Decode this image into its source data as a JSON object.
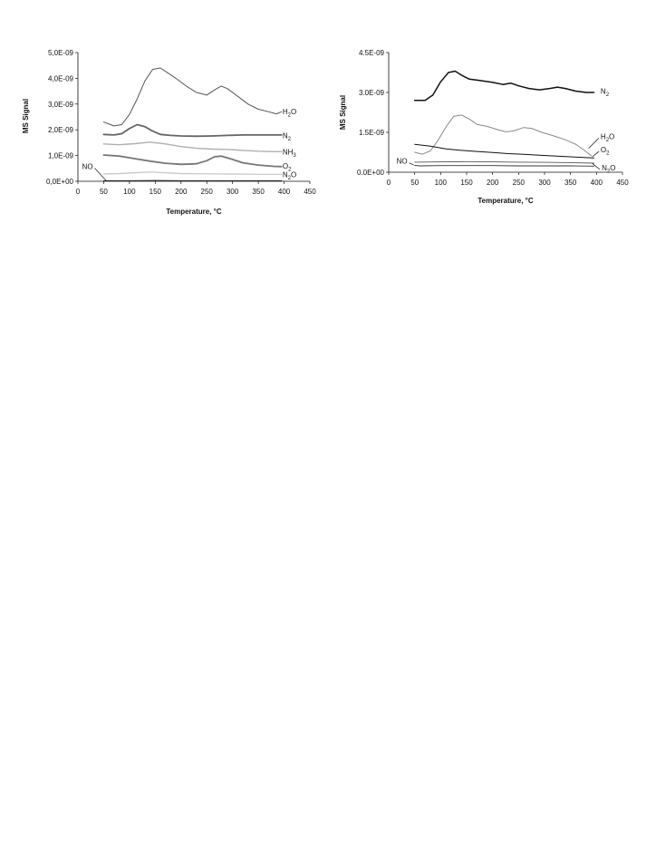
{
  "chart_data": [
    {
      "type": "line",
      "ylabel": "MS Signal",
      "xlabel": "Temperature, °C",
      "xlim": [
        0,
        450
      ],
      "ylim": [
        0,
        5e-09
      ],
      "xticks": [
        0,
        50,
        100,
        150,
        200,
        250,
        300,
        350,
        400,
        450
      ],
      "xtick_labels": [
        "0",
        "50",
        "100",
        "150",
        "200",
        "250",
        "300",
        "350",
        "400",
        "450"
      ],
      "yticks": [
        0,
        1e-09,
        2e-09,
        3e-09,
        4e-09,
        5e-09
      ],
      "ytick_labels": [
        "0,0E+00",
        "1,0E-09",
        "2,0E-09",
        "3,0E-09",
        "4,0E-09",
        "5,0E-09"
      ],
      "grid": false,
      "series": [
        {
          "name": "H2O",
          "label_main": "H",
          "label_sub": "2",
          "label_tail": "O",
          "color": "#555555",
          "width": 1.0,
          "points": [
            [
              50,
              2.3e-09
            ],
            [
              70,
              2.15e-09
            ],
            [
              85,
              2.2e-09
            ],
            [
              100,
              2.6e-09
            ],
            [
              115,
              3.2e-09
            ],
            [
              130,
              3.9e-09
            ],
            [
              145,
              4.35e-09
            ],
            [
              160,
              4.4e-09
            ],
            [
              175,
              4.2e-09
            ],
            [
              190,
              4e-09
            ],
            [
              210,
              3.7e-09
            ],
            [
              230,
              3.45e-09
            ],
            [
              250,
              3.35e-09
            ],
            [
              265,
              3.55e-09
            ],
            [
              278,
              3.7e-09
            ],
            [
              290,
              3.6e-09
            ],
            [
              310,
              3.3e-09
            ],
            [
              330,
              3e-09
            ],
            [
              350,
              2.8e-09
            ],
            [
              370,
              2.7e-09
            ],
            [
              385,
              2.62e-09
            ],
            [
              395,
              2.7e-09
            ]
          ]
        },
        {
          "name": "N2",
          "label_main": "N",
          "label_sub": "2",
          "label_tail": "",
          "color": "#666666",
          "width": 1.8,
          "points": [
            [
              50,
              1.82e-09
            ],
            [
              70,
              1.8e-09
            ],
            [
              85,
              1.85e-09
            ],
            [
              100,
              2.05e-09
            ],
            [
              115,
              2.2e-09
            ],
            [
              130,
              2.12e-09
            ],
            [
              145,
              1.95e-09
            ],
            [
              160,
              1.82e-09
            ],
            [
              180,
              1.78e-09
            ],
            [
              200,
              1.76e-09
            ],
            [
              230,
              1.75e-09
            ],
            [
              260,
              1.76e-09
            ],
            [
              290,
              1.78e-09
            ],
            [
              320,
              1.8e-09
            ],
            [
              350,
              1.8e-09
            ],
            [
              380,
              1.8e-09
            ],
            [
              395,
              1.8e-09
            ]
          ]
        },
        {
          "name": "NH3",
          "label_main": "NH",
          "label_sub": "3",
          "label_tail": "",
          "color": "#b0b0b0",
          "width": 1.4,
          "points": [
            [
              50,
              1.45e-09
            ],
            [
              80,
              1.42e-09
            ],
            [
              110,
              1.46e-09
            ],
            [
              140,
              1.52e-09
            ],
            [
              170,
              1.45e-09
            ],
            [
              200,
              1.35e-09
            ],
            [
              230,
              1.28e-09
            ],
            [
              260,
              1.25e-09
            ],
            [
              290,
              1.24e-09
            ],
            [
              320,
              1.2e-09
            ],
            [
              350,
              1.17e-09
            ],
            [
              380,
              1.15e-09
            ],
            [
              395,
              1.15e-09
            ]
          ]
        },
        {
          "name": "O2",
          "label_main": "O",
          "label_sub": "2",
          "label_tail": "",
          "color": "#777777",
          "width": 1.8,
          "points": [
            [
              50,
              1.02e-09
            ],
            [
              80,
              9.8e-10
            ],
            [
              110,
              8.8e-10
            ],
            [
              140,
              7.8e-10
            ],
            [
              170,
              7e-10
            ],
            [
              200,
              6.6e-10
            ],
            [
              230,
              6.8e-10
            ],
            [
              250,
              8e-10
            ],
            [
              265,
              9.5e-10
            ],
            [
              278,
              9.8e-10
            ],
            [
              295,
              8.8e-10
            ],
            [
              320,
              7.2e-10
            ],
            [
              350,
              6.3e-10
            ],
            [
              380,
              5.8e-10
            ],
            [
              395,
              5.7e-10
            ]
          ]
        },
        {
          "name": "N2O",
          "label_main": "N",
          "label_sub": "2",
          "label_tail": "O",
          "color": "#c4c4c4",
          "width": 1.2,
          "points": [
            [
              50,
              2.8e-10
            ],
            [
              80,
              3e-10
            ],
            [
              110,
              3.3e-10
            ],
            [
              140,
              3.6e-10
            ],
            [
              170,
              3.3e-10
            ],
            [
              200,
              3e-10
            ],
            [
              250,
              2.9e-10
            ],
            [
              300,
              2.8e-10
            ],
            [
              350,
              2.7e-10
            ],
            [
              395,
              2.7e-10
            ]
          ]
        },
        {
          "name": "NO",
          "label_main": "NO",
          "label_sub": "",
          "label_tail": "",
          "color": "#222222",
          "width": 1.0,
          "points": [
            [
              50,
              2e-11
            ],
            [
              100,
              2e-11
            ],
            [
              150,
              3e-11
            ],
            [
              200,
              2e-11
            ],
            [
              250,
              2e-11
            ],
            [
              300,
              2e-11
            ],
            [
              350,
              2e-11
            ],
            [
              395,
              2e-11
            ]
          ]
        }
      ],
      "labels": [
        {
          "series": 0,
          "lx": 397,
          "ly": 2.72e-09,
          "ax": null,
          "ay": null
        },
        {
          "series": 1,
          "lx": 397,
          "ly": 1.78e-09,
          "ax": null,
          "ay": null
        },
        {
          "series": 2,
          "lx": 397,
          "ly": 1.15e-09,
          "ax": null,
          "ay": null
        },
        {
          "series": 3,
          "lx": 397,
          "ly": 6e-10,
          "ax": null,
          "ay": null
        },
        {
          "series": 4,
          "lx": 397,
          "ly": 2.7e-10,
          "ax": null,
          "ay": null
        },
        {
          "series": 5,
          "lx": 8,
          "ly": 5.8e-10,
          "ax": 55,
          "ay": 2e-11
        }
      ]
    },
    {
      "type": "line",
      "ylabel": "MS Signal",
      "xlabel": "Temperature, °C",
      "xlim": [
        0,
        450
      ],
      "ylim": [
        0,
        4.5e-09
      ],
      "xticks": [
        0,
        50,
        100,
        150,
        200,
        250,
        300,
        350,
        400,
        450
      ],
      "xtick_labels": [
        "0",
        "50",
        "100",
        "150",
        "200",
        "250",
        "300",
        "350",
        "400",
        "450"
      ],
      "yticks": [
        0,
        1.5e-09,
        3e-09,
        4.5e-09
      ],
      "ytick_labels": [
        "0.0E+00",
        "1.5E-09",
        "3.0E-09",
        "4.5E-09"
      ],
      "grid": false,
      "series": [
        {
          "name": "N2",
          "label_main": "N",
          "label_sub": "2",
          "label_tail": "",
          "color": "#111111",
          "width": 1.5,
          "points": [
            [
              50,
              2.7e-09
            ],
            [
              70,
              2.7e-09
            ],
            [
              85,
              2.9e-09
            ],
            [
              100,
              3.4e-09
            ],
            [
              115,
              3.75e-09
            ],
            [
              128,
              3.8e-09
            ],
            [
              140,
              3.65e-09
            ],
            [
              155,
              3.5e-09
            ],
            [
              175,
              3.45e-09
            ],
            [
              200,
              3.38e-09
            ],
            [
              220,
              3.3e-09
            ],
            [
              235,
              3.35e-09
            ],
            [
              250,
              3.25e-09
            ],
            [
              270,
              3.15e-09
            ],
            [
              290,
              3.1e-09
            ],
            [
              310,
              3.15e-09
            ],
            [
              325,
              3.2e-09
            ],
            [
              340,
              3.15e-09
            ],
            [
              360,
              3.05e-09
            ],
            [
              380,
              3e-09
            ],
            [
              395,
              3e-09
            ]
          ]
        },
        {
          "name": "H2O",
          "label_main": "H",
          "label_sub": "2",
          "label_tail": "O",
          "color": "#8a8a8a",
          "width": 1.0,
          "points": [
            [
              50,
              7.5e-10
            ],
            [
              65,
              6.8e-10
            ],
            [
              80,
              8e-10
            ],
            [
              95,
              1.2e-09
            ],
            [
              110,
              1.7e-09
            ],
            [
              125,
              2.1e-09
            ],
            [
              140,
              2.15e-09
            ],
            [
              155,
              2e-09
            ],
            [
              170,
              1.8e-09
            ],
            [
              190,
              1.72e-09
            ],
            [
              210,
              1.6e-09
            ],
            [
              225,
              1.52e-09
            ],
            [
              240,
              1.55e-09
            ],
            [
              260,
              1.68e-09
            ],
            [
              275,
              1.65e-09
            ],
            [
              295,
              1.5e-09
            ],
            [
              320,
              1.35e-09
            ],
            [
              340,
              1.22e-09
            ],
            [
              360,
              1.05e-09
            ],
            [
              375,
              8.5e-10
            ],
            [
              390,
              6.2e-10
            ]
          ]
        },
        {
          "name": "O2",
          "label_main": "O",
          "label_sub": "2",
          "label_tail": "",
          "color": "#111111",
          "width": 1.0,
          "points": [
            [
              50,
              1.05e-09
            ],
            [
              80,
              9.8e-10
            ],
            [
              110,
              8.8e-10
            ],
            [
              140,
              8.2e-10
            ],
            [
              170,
              7.8e-10
            ],
            [
              200,
              7.4e-10
            ],
            [
              230,
              7e-10
            ],
            [
              260,
              6.7e-10
            ],
            [
              290,
              6.4e-10
            ],
            [
              320,
              6.1e-10
            ],
            [
              350,
              5.8e-10
            ],
            [
              380,
              5.5e-10
            ],
            [
              395,
              5.4e-10
            ]
          ]
        },
        {
          "name": "N2O",
          "label_main": "N",
          "label_sub": "2",
          "label_tail": "O",
          "color": "#555555",
          "width": 0.9,
          "points": [
            [
              50,
              3.8e-10
            ],
            [
              100,
              3.9e-10
            ],
            [
              150,
              4e-10
            ],
            [
              200,
              3.9e-10
            ],
            [
              250,
              3.8e-10
            ],
            [
              300,
              3.7e-10
            ],
            [
              350,
              3.6e-10
            ],
            [
              395,
              3.4e-10
            ]
          ]
        },
        {
          "name": "NO",
          "label_main": "NO",
          "label_sub": "",
          "label_tail": "",
          "color": "#333333",
          "width": 0.9,
          "points": [
            [
              50,
              2.6e-10
            ],
            [
              60,
              2.4e-10
            ],
            [
              100,
              2.5e-10
            ],
            [
              150,
              2.5e-10
            ],
            [
              200,
              2.5e-10
            ],
            [
              250,
              2.4e-10
            ],
            [
              300,
              2.4e-10
            ],
            [
              350,
              2.4e-10
            ],
            [
              395,
              2.3e-10
            ]
          ]
        }
      ],
      "labels": [
        {
          "series": 0,
          "lx": 408,
          "ly": 3.05e-09,
          "ax": null,
          "ay": null
        },
        {
          "series": 1,
          "lx": 408,
          "ly": 1.35e-09,
          "ax": 385,
          "ay": 9e-10
        },
        {
          "series": 2,
          "lx": 408,
          "ly": 8.5e-10,
          "ax": 392,
          "ay": 5.8e-10
        },
        {
          "series": 3,
          "lx": 410,
          "ly": 1.7e-10,
          "ax": 392,
          "ay": 3.3e-10
        },
        {
          "series": 4,
          "lx": 15,
          "ly": 4.2e-10,
          "ax": 48,
          "ay": 2.7e-10
        }
      ]
    }
  ]
}
